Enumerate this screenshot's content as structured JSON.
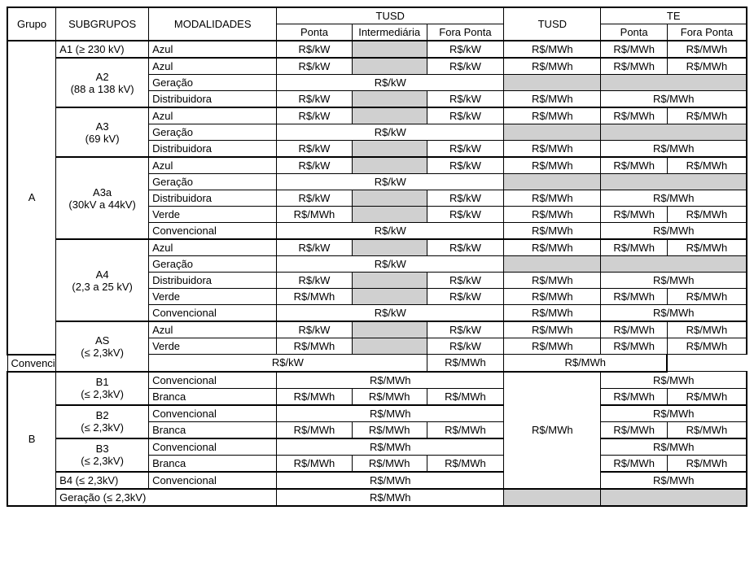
{
  "unit_kw": "R$/kW",
  "unit_mwh": "R$/MWh",
  "headers": {
    "grupo": "Grupo",
    "subgrupos": "SUBGRUPOS",
    "modalidades": "MODALIDADES",
    "tusd": "TUSD",
    "te": "TE",
    "ponta": "Ponta",
    "intermediaria": "Intermediária",
    "fora_ponta": "Fora Ponta"
  },
  "grupos": {
    "A": "A",
    "B": "B"
  },
  "subgrupos": {
    "A1": "A1 (≥ 230 kV)",
    "A2_1": "A2",
    "A2_2": "(88 a 138 kV)",
    "A3_1": "A3",
    "A3_2": "(69 kV)",
    "A3a_1": "A3a",
    "A3a_2": "(30kV a 44kV)",
    "A4_1": "A4",
    "A4_2": "(2,3 a 25 kV)",
    "AS_1": "AS",
    "AS_2": "(≤ 2,3kV)",
    "B1_1": "B1",
    "B1_2": "(≤ 2,3kV)",
    "B2_1": "B2",
    "B2_2": "(≤ 2,3kV)",
    "B3_1": "B3",
    "B3_2": "(≤ 2,3kV)",
    "B4": "B4 (≤ 2,3kV)",
    "BGen": "Geração (≤ 2,3kV)"
  },
  "modalidades": {
    "azul": "Azul",
    "geracao": "Geração",
    "distribuidora": "Distribuidora",
    "verde": "Verde",
    "convencional": "Convencional",
    "branca": "Branca"
  }
}
